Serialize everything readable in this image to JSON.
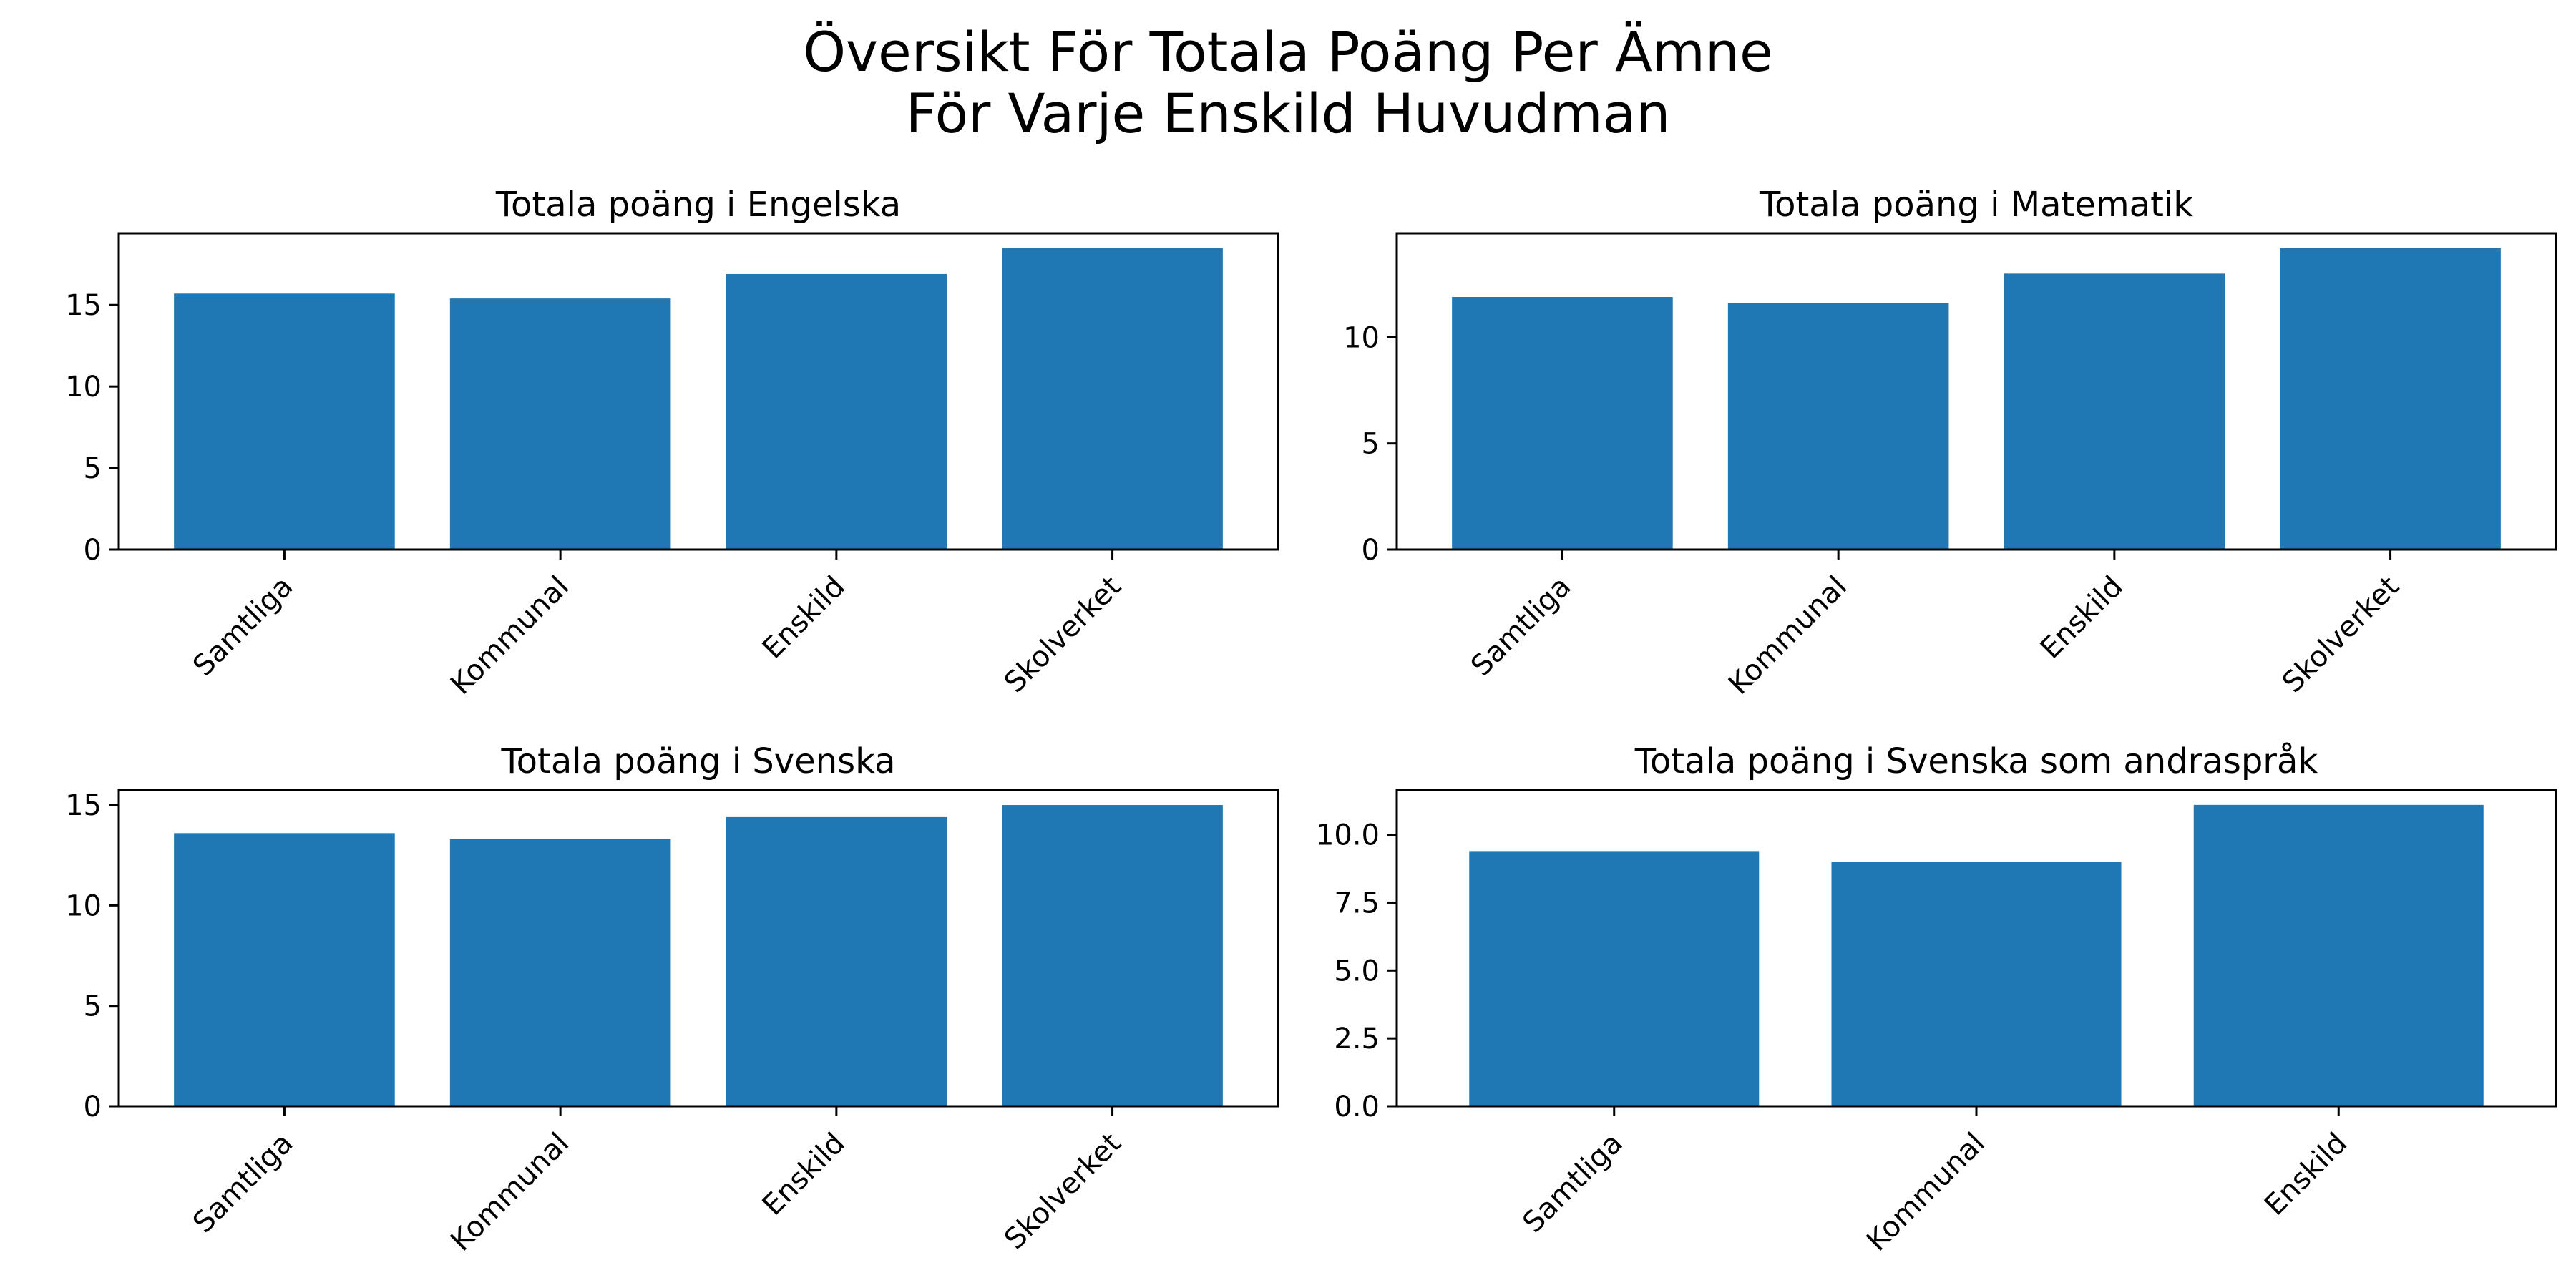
{
  "figure": {
    "title_line1": "Översikt För Totala Poäng Per Ämne",
    "title_line2": "För Varje Enskild Huvudman"
  },
  "bar_color": "#1f77b4",
  "chart_data": [
    {
      "type": "bar",
      "title": "Totala poäng i Engelska",
      "categories": [
        "Samtliga",
        "Kommunal",
        "Enskild",
        "Skolverket"
      ],
      "values": [
        15.7,
        15.4,
        16.9,
        18.5
      ],
      "ylim": [
        0,
        19.4
      ],
      "yticks": [
        0,
        5,
        10,
        15
      ],
      "ytick_labels": [
        "0",
        "5",
        "10",
        "15"
      ],
      "xlabel": "",
      "ylabel": "",
      "grid": false
    },
    {
      "type": "bar",
      "title": "Totala poäng i Matematik",
      "categories": [
        "Samtliga",
        "Kommunal",
        "Enskild",
        "Skolverket"
      ],
      "values": [
        11.9,
        11.6,
        13.0,
        14.2
      ],
      "ylim": [
        0,
        14.9
      ],
      "yticks": [
        0,
        5,
        10
      ],
      "ytick_labels": [
        "0",
        "5",
        "10"
      ],
      "xlabel": "",
      "ylabel": "",
      "grid": false
    },
    {
      "type": "bar",
      "title": "Totala poäng i Svenska",
      "categories": [
        "Samtliga",
        "Kommunal",
        "Enskild",
        "Skolverket"
      ],
      "values": [
        13.6,
        13.3,
        14.4,
        15.0
      ],
      "ylim": [
        0,
        15.75
      ],
      "yticks": [
        0,
        5,
        10,
        15
      ],
      "ytick_labels": [
        "0",
        "5",
        "10",
        "15"
      ],
      "xlabel": "",
      "ylabel": "",
      "grid": false
    },
    {
      "type": "bar",
      "title": "Totala poäng i Svenska som andraspråk",
      "categories": [
        "Samtliga",
        "Kommunal",
        "Enskild"
      ],
      "values": [
        9.4,
        9.0,
        11.1
      ],
      "ylim": [
        0,
        11.65
      ],
      "yticks": [
        0,
        2.5,
        5,
        7.5,
        10
      ],
      "ytick_labels": [
        "0.0",
        "2.5",
        "5.0",
        "7.5",
        "10.0"
      ],
      "xlabel": "",
      "ylabel": "",
      "grid": false
    }
  ]
}
